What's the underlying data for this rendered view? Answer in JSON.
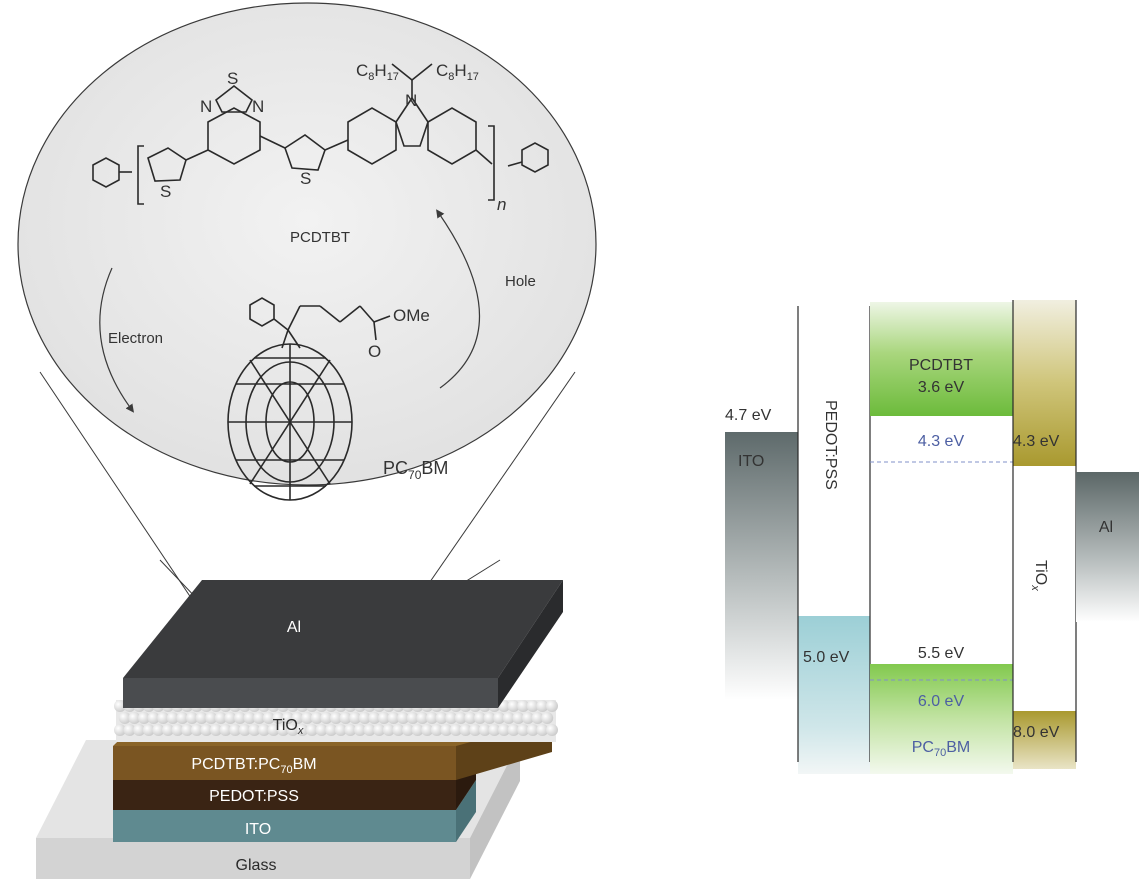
{
  "molecule": {
    "donor_name": "PCDTBT",
    "acceptor": {
      "base": "PC",
      "sub": "70",
      "rest": "BM"
    },
    "electron_label": "Electron",
    "hole_label": "Hole",
    "atoms": {
      "s": "S",
      "n": "N",
      "c": "C",
      "h": "H",
      "c8": "8",
      "h17": "17",
      "ome": "OMe",
      "o": "O",
      "n_repeat": "n"
    }
  },
  "device_stack": {
    "top_electrode": "Al",
    "electron_layer": {
      "base": "TiO",
      "sub": "x"
    },
    "active_layer": {
      "base": "PCDTBT:PC",
      "sub": "70",
      "rest": "BM"
    },
    "hole_layer": "PEDOT:PSS",
    "anode": "ITO",
    "substrate": "Glass",
    "colors": {
      "al": "#3a3b3d",
      "tiox": "#f2f2f2",
      "active": "#7a5522",
      "pedot": "#3a2414",
      "ito": "#5f8a90",
      "glass": "#d3d3d3"
    }
  },
  "energy_diagram": {
    "ito": {
      "name": "ITO",
      "level": "4.7 eV"
    },
    "pedot": {
      "name": "PEDOT:PSS",
      "level": "5.0 eV"
    },
    "pcdtbt": {
      "name": "PCDTBT",
      "lumo": "3.6 eV",
      "homo": "5.5 eV"
    },
    "pcbm": {
      "name": {
        "base": "PC",
        "sub": "70",
        "rest": "BM"
      },
      "lumo": "4.3 eV",
      "homo": "6.0 eV"
    },
    "tiox": {
      "name": {
        "base": "TiO",
        "sub": "x"
      },
      "cb": "4.3 eV",
      "vb": "8.0 eV"
    },
    "al": {
      "name": "Al"
    },
    "colors": {
      "ito": "#6e7b7c",
      "pedot": "#9ccfd6",
      "pcdtbt": "#7fc34a",
      "tiox": "#b1a23f",
      "al": "#5e6b6b",
      "pcbm_text": "#4d5fa3"
    }
  }
}
